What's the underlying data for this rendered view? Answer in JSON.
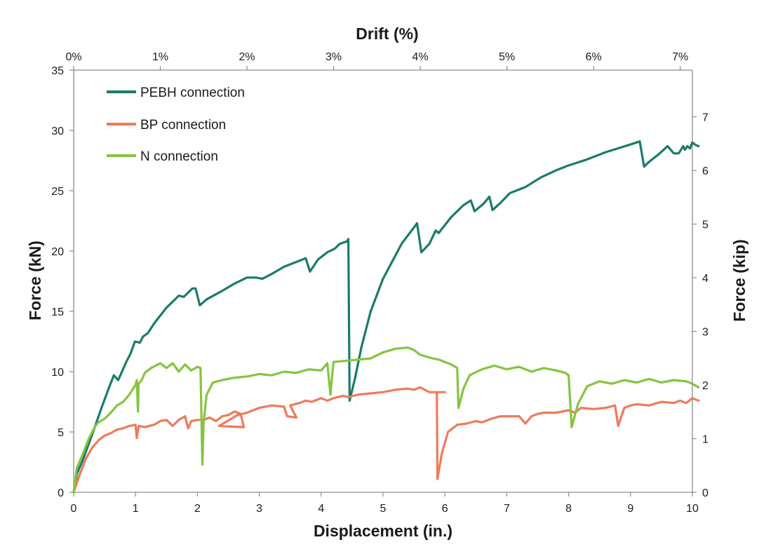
{
  "chart_data": {
    "type": "line",
    "title": "",
    "xlabel": "Displacement (in.)",
    "ylabel": "Force (kN)",
    "top_xlabel": "Drift (%)",
    "right_ylabel": "Force (kip)",
    "xlim": [
      0,
      10
    ],
    "ylim": [
      0,
      35
    ],
    "top_xlim_percent": [
      0,
      7.14
    ],
    "right_ylim_kip": [
      0,
      7.87
    ],
    "x_ticks": [
      0,
      1,
      2,
      3,
      4,
      5,
      6,
      7,
      8,
      9,
      10
    ],
    "y_ticks": [
      0,
      5,
      10,
      15,
      20,
      25,
      30,
      35
    ],
    "top_ticks": [
      "0%",
      "1%",
      "2%",
      "3%",
      "4%",
      "5%",
      "6%",
      "7%"
    ],
    "top_tick_values": [
      0,
      1,
      2,
      3,
      4,
      5,
      6,
      7
    ],
    "right_ticks": [
      0,
      1,
      2,
      3,
      4,
      5,
      6,
      7
    ],
    "grid": false,
    "legend_position": "top-left",
    "series": [
      {
        "name": "PEBH connection",
        "color": "#1b7b6b",
        "points": [
          [
            0,
            0
          ],
          [
            0.05,
            1.5
          ],
          [
            0.15,
            2.7
          ],
          [
            0.3,
            4.8
          ],
          [
            0.45,
            7.0
          ],
          [
            0.58,
            8.8
          ],
          [
            0.65,
            9.7
          ],
          [
            0.72,
            9.3
          ],
          [
            0.85,
            10.8
          ],
          [
            0.92,
            11.5
          ],
          [
            0.99,
            12.5
          ],
          [
            1.07,
            12.4
          ],
          [
            1.12,
            12.9
          ],
          [
            1.2,
            13.2
          ],
          [
            1.3,
            14.0
          ],
          [
            1.5,
            15.3
          ],
          [
            1.7,
            16.3
          ],
          [
            1.78,
            16.2
          ],
          [
            1.92,
            16.9
          ],
          [
            1.97,
            16.9
          ],
          [
            2.04,
            15.5
          ],
          [
            2.15,
            16.0
          ],
          [
            2.4,
            16.7
          ],
          [
            2.6,
            17.3
          ],
          [
            2.8,
            17.8
          ],
          [
            2.95,
            17.8
          ],
          [
            3.05,
            17.7
          ],
          [
            3.2,
            18.1
          ],
          [
            3.4,
            18.7
          ],
          [
            3.6,
            19.1
          ],
          [
            3.75,
            19.4
          ],
          [
            3.82,
            18.3
          ],
          [
            3.95,
            19.3
          ],
          [
            4.1,
            19.9
          ],
          [
            4.22,
            20.2
          ],
          [
            4.3,
            20.6
          ],
          [
            4.42,
            20.8
          ],
          [
            4.44,
            21.0
          ],
          [
            4.46,
            7.6
          ],
          [
            4.55,
            9.5
          ],
          [
            4.65,
            12.0
          ],
          [
            4.8,
            15.0
          ],
          [
            5.0,
            17.7
          ],
          [
            5.3,
            20.6
          ],
          [
            5.55,
            22.3
          ],
          [
            5.62,
            19.9
          ],
          [
            5.75,
            20.6
          ],
          [
            5.85,
            21.7
          ],
          [
            5.9,
            21.5
          ],
          [
            6.1,
            22.8
          ],
          [
            6.3,
            23.8
          ],
          [
            6.42,
            24.2
          ],
          [
            6.48,
            23.3
          ],
          [
            6.62,
            23.9
          ],
          [
            6.72,
            24.5
          ],
          [
            6.77,
            23.4
          ],
          [
            6.9,
            24.0
          ],
          [
            7.05,
            24.8
          ],
          [
            7.3,
            25.3
          ],
          [
            7.55,
            26.1
          ],
          [
            7.8,
            26.7
          ],
          [
            8.0,
            27.1
          ],
          [
            8.3,
            27.6
          ],
          [
            8.6,
            28.2
          ],
          [
            8.85,
            28.6
          ],
          [
            9.1,
            29.0
          ],
          [
            9.15,
            29.1
          ],
          [
            9.22,
            27.0
          ],
          [
            9.3,
            27.4
          ],
          [
            9.45,
            28.0
          ],
          [
            9.6,
            28.7
          ],
          [
            9.7,
            28.1
          ],
          [
            9.78,
            28.1
          ],
          [
            9.85,
            28.7
          ],
          [
            9.88,
            28.4
          ],
          [
            9.92,
            28.7
          ],
          [
            9.96,
            28.5
          ],
          [
            10.0,
            29.0
          ],
          [
            10.05,
            28.8
          ],
          [
            10.1,
            28.7
          ]
        ]
      },
      {
        "name": "BP connection",
        "color": "#ef7a5a",
        "points": [
          [
            0,
            0
          ],
          [
            0.1,
            1.5
          ],
          [
            0.2,
            2.8
          ],
          [
            0.3,
            3.7
          ],
          [
            0.4,
            4.3
          ],
          [
            0.5,
            4.7
          ],
          [
            0.6,
            4.9
          ],
          [
            0.7,
            5.2
          ],
          [
            0.8,
            5.3
          ],
          [
            0.9,
            5.5
          ],
          [
            1.0,
            5.6
          ],
          [
            1.02,
            4.5
          ],
          [
            1.05,
            5.5
          ],
          [
            1.15,
            5.4
          ],
          [
            1.3,
            5.6
          ],
          [
            1.4,
            5.9
          ],
          [
            1.5,
            6.0
          ],
          [
            1.6,
            5.5
          ],
          [
            1.7,
            6.0
          ],
          [
            1.8,
            6.3
          ],
          [
            1.85,
            5.3
          ],
          [
            1.9,
            5.9
          ],
          [
            2.0,
            6.0
          ],
          [
            2.1,
            6.0
          ],
          [
            2.2,
            6.2
          ],
          [
            2.3,
            5.9
          ],
          [
            2.4,
            6.3
          ],
          [
            2.5,
            6.4
          ],
          [
            2.6,
            6.7
          ],
          [
            2.7,
            6.5
          ],
          [
            2.75,
            5.4
          ],
          [
            2.35,
            5.5
          ],
          [
            2.65,
            6.4
          ],
          [
            2.8,
            6.6
          ],
          [
            3.0,
            7.0
          ],
          [
            3.2,
            7.2
          ],
          [
            3.4,
            7.1
          ],
          [
            3.45,
            6.3
          ],
          [
            3.6,
            6.2
          ],
          [
            3.5,
            7.2
          ],
          [
            3.65,
            7.4
          ],
          [
            3.75,
            7.6
          ],
          [
            3.85,
            7.5
          ],
          [
            4.0,
            7.8
          ],
          [
            4.1,
            7.6
          ],
          [
            4.2,
            7.8
          ],
          [
            4.35,
            8.0
          ],
          [
            4.45,
            7.9
          ],
          [
            4.6,
            8.1
          ],
          [
            4.8,
            8.2
          ],
          [
            5.0,
            8.3
          ],
          [
            5.2,
            8.5
          ],
          [
            5.4,
            8.6
          ],
          [
            5.5,
            8.5
          ],
          [
            5.6,
            8.7
          ],
          [
            5.75,
            8.3
          ],
          [
            6.0,
            8.3
          ],
          [
            5.87,
            8.3
          ],
          [
            5.88,
            1.1
          ],
          [
            5.95,
            3.2
          ],
          [
            6.05,
            5.0
          ],
          [
            6.2,
            5.6
          ],
          [
            6.35,
            5.7
          ],
          [
            6.5,
            5.9
          ],
          [
            6.6,
            5.8
          ],
          [
            6.75,
            6.1
          ],
          [
            6.9,
            6.3
          ],
          [
            7.0,
            6.3
          ],
          [
            7.2,
            6.3
          ],
          [
            7.3,
            5.7
          ],
          [
            7.4,
            6.3
          ],
          [
            7.5,
            6.5
          ],
          [
            7.6,
            6.6
          ],
          [
            7.8,
            6.6
          ],
          [
            8.0,
            6.8
          ],
          [
            8.1,
            6.6
          ],
          [
            8.2,
            7.0
          ],
          [
            8.4,
            6.9
          ],
          [
            8.6,
            7.0
          ],
          [
            8.75,
            7.2
          ],
          [
            8.8,
            5.5
          ],
          [
            8.9,
            7.0
          ],
          [
            9.0,
            7.2
          ],
          [
            9.1,
            7.3
          ],
          [
            9.3,
            7.2
          ],
          [
            9.5,
            7.5
          ],
          [
            9.7,
            7.4
          ],
          [
            9.8,
            7.6
          ],
          [
            9.9,
            7.4
          ],
          [
            10.0,
            7.8
          ],
          [
            10.1,
            7.6
          ]
        ]
      },
      {
        "name": "N connection",
        "color": "#84c441",
        "points": [
          [
            0,
            0
          ],
          [
            0.05,
            2.0
          ],
          [
            0.15,
            3.2
          ],
          [
            0.25,
            4.5
          ],
          [
            0.35,
            5.5
          ],
          [
            0.4,
            5.8
          ],
          [
            0.5,
            6.1
          ],
          [
            0.6,
            6.6
          ],
          [
            0.7,
            7.2
          ],
          [
            0.8,
            7.5
          ],
          [
            0.85,
            7.8
          ],
          [
            0.9,
            8.1
          ],
          [
            0.95,
            8.5
          ],
          [
            1.0,
            8.9
          ],
          [
            1.02,
            9.3
          ],
          [
            1.04,
            6.7
          ],
          [
            1.05,
            9.0
          ],
          [
            1.1,
            9.3
          ],
          [
            1.15,
            9.9
          ],
          [
            1.25,
            10.3
          ],
          [
            1.4,
            10.7
          ],
          [
            1.5,
            10.3
          ],
          [
            1.6,
            10.7
          ],
          [
            1.7,
            10.0
          ],
          [
            1.8,
            10.6
          ],
          [
            1.9,
            10.1
          ],
          [
            2.0,
            10.4
          ],
          [
            2.05,
            10.3
          ],
          [
            2.08,
            2.3
          ],
          [
            2.1,
            5.8
          ],
          [
            2.15,
            8.1
          ],
          [
            2.25,
            9.1
          ],
          [
            2.4,
            9.3
          ],
          [
            2.6,
            9.5
          ],
          [
            2.8,
            9.6
          ],
          [
            3.0,
            9.8
          ],
          [
            3.2,
            9.7
          ],
          [
            3.4,
            10.0
          ],
          [
            3.6,
            9.9
          ],
          [
            3.8,
            10.2
          ],
          [
            4.0,
            10.1
          ],
          [
            4.1,
            10.7
          ],
          [
            4.15,
            8.1
          ],
          [
            4.2,
            10.8
          ],
          [
            4.4,
            10.9
          ],
          [
            4.6,
            11.0
          ],
          [
            4.8,
            11.1
          ],
          [
            5.0,
            11.6
          ],
          [
            5.2,
            11.9
          ],
          [
            5.4,
            12.0
          ],
          [
            5.5,
            11.8
          ],
          [
            5.6,
            11.4
          ],
          [
            5.8,
            11.1
          ],
          [
            5.9,
            11.0
          ],
          [
            6.0,
            10.8
          ],
          [
            6.1,
            10.6
          ],
          [
            6.2,
            10.3
          ],
          [
            6.22,
            7.0
          ],
          [
            6.3,
            8.6
          ],
          [
            6.4,
            9.7
          ],
          [
            6.6,
            10.2
          ],
          [
            6.8,
            10.5
          ],
          [
            7.0,
            10.2
          ],
          [
            7.2,
            10.4
          ],
          [
            7.4,
            10.0
          ],
          [
            7.6,
            10.3
          ],
          [
            7.8,
            10.1
          ],
          [
            7.95,
            9.9
          ],
          [
            8.0,
            9.7
          ],
          [
            8.05,
            5.4
          ],
          [
            8.15,
            7.3
          ],
          [
            8.3,
            8.8
          ],
          [
            8.5,
            9.2
          ],
          [
            8.7,
            9.0
          ],
          [
            8.9,
            9.3
          ],
          [
            9.1,
            9.1
          ],
          [
            9.3,
            9.4
          ],
          [
            9.5,
            9.1
          ],
          [
            9.7,
            9.3
          ],
          [
            9.9,
            9.2
          ],
          [
            10.0,
            9.0
          ],
          [
            10.1,
            8.7
          ]
        ]
      }
    ]
  }
}
